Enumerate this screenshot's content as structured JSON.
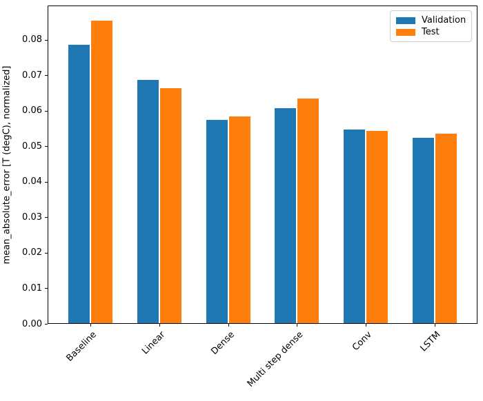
{
  "figure": {
    "background": "#ffffff",
    "spine_color": "#000000"
  },
  "chart_data": {
    "type": "bar",
    "title": "",
    "xlabel": "",
    "ylabel": "mean_absolute_error [T (degC), normalized]",
    "categories": [
      "Baseline",
      "Linear",
      "Dense",
      "Multi step dense",
      "Conv",
      "LSTM"
    ],
    "series": [
      {
        "name": "Validation",
        "color": "#1f77b4",
        "values": [
          0.0785,
          0.0686,
          0.0573,
          0.0605,
          0.0545,
          0.0523
        ]
      },
      {
        "name": "Test",
        "color": "#ff7f0e",
        "values": [
          0.0852,
          0.0663,
          0.0583,
          0.0633,
          0.0542,
          0.0534
        ]
      }
    ],
    "ylim": [
      0,
      0.0897
    ],
    "yticks": [
      0.0,
      0.01,
      0.02,
      0.03,
      0.04,
      0.05,
      0.06,
      0.07,
      0.08
    ],
    "ytick_labels": [
      "0.00",
      "0.01",
      "0.02",
      "0.03",
      "0.04",
      "0.05",
      "0.06",
      "0.07",
      "0.08"
    ],
    "xtick_rotation": 45,
    "grid": false,
    "legend": {
      "position": "upper right",
      "entries": [
        "Validation",
        "Test"
      ]
    }
  }
}
